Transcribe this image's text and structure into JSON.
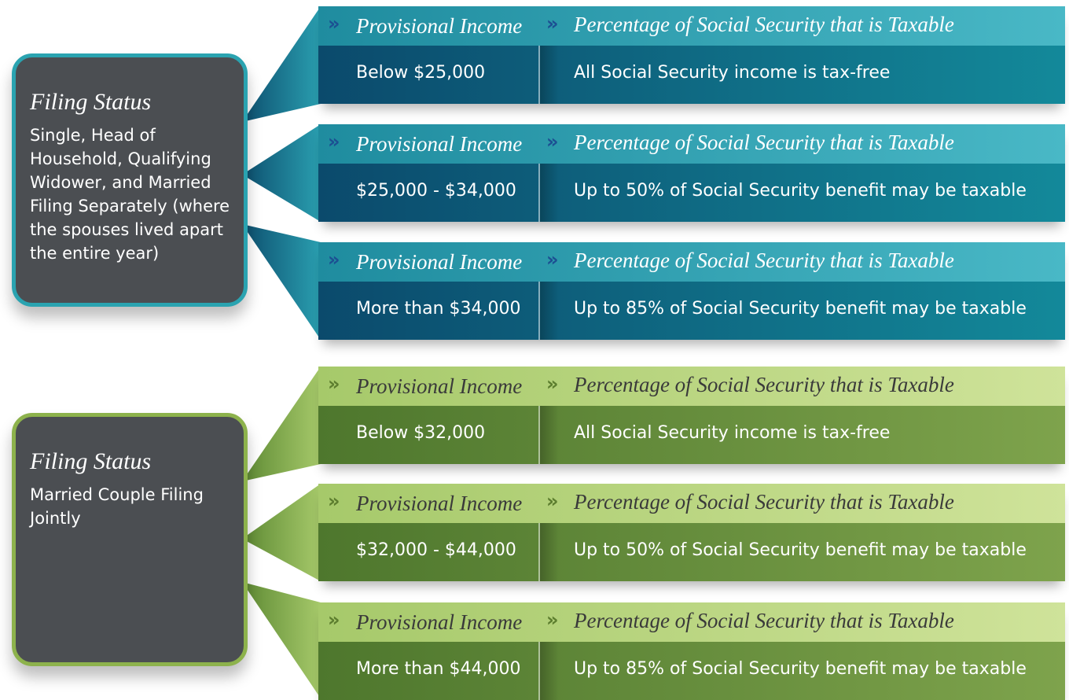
{
  "groups": [
    {
      "status_title": "Filing Status",
      "status_text": "Single, Head of Household, Qualifying Widower, and Married Filing Separately (where the spouses lived apart the entire year)",
      "rows": [
        {
          "header_left": "Provisional Income",
          "header_right": "Percentage of Social Security that is Taxable",
          "income": "Below $25,000",
          "taxable": "All Social Security income is tax-free"
        },
        {
          "header_left": "Provisional Income",
          "header_right": "Percentage of Social Security that is Taxable",
          "income": "$25,000 - $34,000",
          "taxable": "Up to 50% of Social Security benefit may be taxable"
        },
        {
          "header_left": "Provisional Income",
          "header_right": "Percentage of Social Security that is Taxable",
          "income": "More than $34,000",
          "taxable": "Up to 85% of Social Security benefit may be taxable"
        }
      ]
    },
    {
      "status_title": "Filing Status",
      "status_text": "Married Couple Filing Jointly",
      "rows": [
        {
          "header_left": "Provisional Income",
          "header_right": "Percentage of Social Security that is Taxable",
          "income": "Below $32,000",
          "taxable": "All Social Security income is tax-free"
        },
        {
          "header_left": "Provisional Income",
          "header_right": "Percentage of Social Security that is Taxable",
          "income": "$32,000 - $44,000",
          "taxable": "Up to 50% of Social Security benefit may be taxable"
        },
        {
          "header_left": "Provisional Income",
          "header_right": "Percentage of Social Security that is Taxable",
          "income": "More than $44,000",
          "taxable": "Up to 85% of Social Security benefit may be taxable"
        }
      ]
    }
  ]
}
